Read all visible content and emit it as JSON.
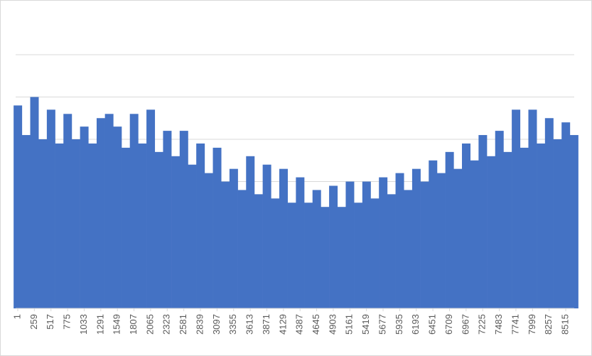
{
  "chart_data": {
    "type": "bar",
    "x": [
      1,
      130,
      259,
      388,
      517,
      646,
      775,
      904,
      1033,
      1162,
      1291,
      1420,
      1549,
      1678,
      1807,
      1936,
      2065,
      2194,
      2323,
      2452,
      2581,
      2710,
      2839,
      2968,
      3097,
      3226,
      3355,
      3484,
      3613,
      3742,
      3871,
      4000,
      4129,
      4258,
      4387,
      4516,
      4645,
      4774,
      4903,
      5032,
      5161,
      5290,
      5419,
      5548,
      5677,
      5806,
      5935,
      6064,
      6193,
      6322,
      6451,
      6580,
      6709,
      6838,
      6967,
      7096,
      7225,
      7354,
      7483,
      7612,
      7741,
      7870,
      7999,
      8128,
      8257,
      8386,
      8515,
      8644
    ],
    "values": [
      4.8,
      4.1,
      5.0,
      4.0,
      4.7,
      3.9,
      4.6,
      4.0,
      4.3,
      3.9,
      4.5,
      4.6,
      4.3,
      3.8,
      4.6,
      3.9,
      4.7,
      3.7,
      4.2,
      3.6,
      4.2,
      3.4,
      3.9,
      3.2,
      3.8,
      3.0,
      3.3,
      2.8,
      3.6,
      2.7,
      3.4,
      2.6,
      3.3,
      2.5,
      3.1,
      2.5,
      2.8,
      2.4,
      2.9,
      2.4,
      3.0,
      2.5,
      3.0,
      2.6,
      3.1,
      2.7,
      3.2,
      2.8,
      3.3,
      3.0,
      3.5,
      3.2,
      3.7,
      3.3,
      3.9,
      3.5,
      4.1,
      3.6,
      4.2,
      3.7,
      4.7,
      3.8,
      4.7,
      3.9,
      4.5,
      4.0,
      4.4,
      4.1
    ],
    "bar_width": 129,
    "color": "#4472c4",
    "xlim": [
      -32,
      8647
    ],
    "xticks": [
      1,
      259,
      517,
      775,
      1033,
      1291,
      1549,
      1807,
      2065,
      2323,
      2581,
      2839,
      3097,
      3355,
      3613,
      3871,
      4129,
      4387,
      4645,
      4903,
      5161,
      5419,
      5677,
      5935,
      6193,
      6451,
      6709,
      6967,
      7225,
      7483,
      7741,
      7999,
      8257,
      8515
    ],
    "ylim": [
      0,
      6
    ],
    "grid_lines": [
      1,
      2,
      3,
      4,
      5,
      6
    ]
  }
}
